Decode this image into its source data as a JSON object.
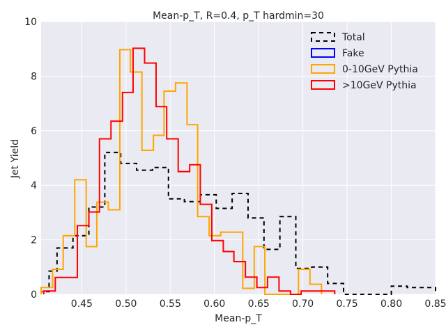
{
  "chart_data": {
    "type": "histogram",
    "title": "Mean-p_T, R=0.4, p_T hardmin=30",
    "xlabel": "Mean-p_T",
    "ylabel": "Jet Yield",
    "xlim": [
      0.404,
      0.85
    ],
    "ylim": [
      0,
      10
    ],
    "xticks": [
      0.45,
      0.5,
      0.55,
      0.6,
      0.65,
      0.7,
      0.75,
      0.8,
      0.85
    ],
    "xtick_labels": [
      "0.45",
      "0.50",
      "0.55",
      "0.60",
      "0.65",
      "0.70",
      "0.75",
      "0.80",
      "0.85"
    ],
    "yticks": [
      0,
      2,
      4,
      6,
      8,
      10
    ],
    "ytick_labels": [
      "0",
      "2",
      "4",
      "6",
      "8",
      "10"
    ],
    "grid": true,
    "legend_position": "top-right",
    "series": [
      {
        "name": "Total",
        "color": "#000000",
        "dashed": true,
        "edges": [
          0.404,
          0.413,
          0.422,
          0.44,
          0.458,
          0.476,
          0.494,
          0.512,
          0.53,
          0.548,
          0.566,
          0.584,
          0.602,
          0.62,
          0.638,
          0.656,
          0.674,
          0.692,
          0.71,
          0.728,
          0.746,
          0.764,
          0.782,
          0.8,
          0.818,
          0.836,
          0.85
        ],
        "values": [
          0.1,
          0.85,
          1.7,
          2.15,
          3.2,
          5.2,
          4.8,
          4.55,
          4.65,
          3.5,
          3.4,
          3.65,
          3.15,
          3.7,
          2.8,
          1.65,
          2.85,
          0.95,
          1.0,
          0.4,
          0.0,
          0.0,
          0.0,
          0.3,
          0.25,
          0.25
        ]
      },
      {
        "name": "Fake",
        "color": "#0000ff",
        "dashed": false,
        "edges": [],
        "values": []
      },
      {
        "name": "0-10GeV Pythia",
        "color": "#ffa500",
        "dashed": false,
        "edges": [
          0.404,
          0.417,
          0.429,
          0.442,
          0.455,
          0.467,
          0.48,
          0.493,
          0.505,
          0.518,
          0.531,
          0.543,
          0.556,
          0.569,
          0.581,
          0.594,
          0.607,
          0.619,
          0.632,
          0.645,
          0.657,
          0.67,
          0.683,
          0.695,
          0.708,
          0.721
        ],
        "values": [
          0.25,
          0.92,
          2.15,
          4.2,
          1.75,
          3.38,
          3.1,
          8.97,
          8.15,
          5.28,
          5.83,
          7.45,
          7.75,
          6.22,
          2.85,
          2.15,
          2.28,
          2.28,
          0.22,
          1.75,
          0.0,
          0.0,
          0.0,
          0.92,
          0.37
        ]
      },
      {
        "name": ">10GeV Pythia",
        "color": "#ff0000",
        "dashed": false,
        "edges": [
          0.407,
          0.42,
          0.432,
          0.445,
          0.458,
          0.47,
          0.483,
          0.496,
          0.508,
          0.521,
          0.534,
          0.546,
          0.559,
          0.572,
          0.584,
          0.597,
          0.61,
          0.622,
          0.635,
          0.648,
          0.66,
          0.673,
          0.686,
          0.698,
          0.711,
          0.724,
          0.736
        ],
        "values": [
          0.12,
          0.62,
          0.62,
          2.52,
          3.02,
          5.7,
          6.35,
          7.4,
          9.02,
          8.48,
          6.88,
          5.7,
          4.5,
          4.75,
          3.3,
          1.97,
          1.57,
          1.2,
          0.63,
          0.25,
          0.63,
          0.12,
          0.0,
          0.12,
          0.12,
          0.12
        ]
      }
    ]
  }
}
